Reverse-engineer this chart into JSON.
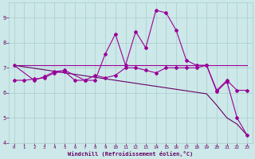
{
  "xlabel": "Windchill (Refroidissement éolien,°C)",
  "background_color": "#cce8e8",
  "grid_color": "#aacccc",
  "line_color": "#990099",
  "xlim": [
    -0.5,
    23.5
  ],
  "ylim": [
    4.0,
    9.6
  ],
  "xticks": [
    0,
    1,
    2,
    3,
    4,
    5,
    6,
    7,
    8,
    9,
    10,
    11,
    12,
    13,
    14,
    15,
    16,
    17,
    18,
    19,
    20,
    21,
    22,
    23
  ],
  "yticks": [
    4,
    5,
    6,
    7,
    8,
    9
  ],
  "line1_x": [
    0,
    1,
    2,
    3,
    4,
    5,
    6,
    7,
    8,
    9,
    10,
    11,
    12,
    13,
    14,
    15,
    16,
    17,
    18,
    19,
    20,
    21,
    22,
    23
  ],
  "line1_y": [
    7.1,
    7.1,
    7.1,
    7.1,
    7.1,
    7.1,
    7.1,
    7.1,
    7.1,
    7.1,
    7.1,
    7.1,
    7.1,
    7.1,
    7.1,
    7.1,
    7.1,
    7.1,
    7.1,
    7.1,
    7.1,
    7.1,
    7.1,
    7.1
  ],
  "line2_x": [
    0,
    1,
    2,
    3,
    4,
    5,
    6,
    7,
    8,
    9,
    10,
    11,
    12,
    13,
    14,
    15,
    16,
    17,
    18,
    19,
    20,
    21,
    22,
    23
  ],
  "line2_y": [
    6.5,
    6.5,
    6.55,
    6.6,
    6.8,
    6.85,
    6.5,
    6.5,
    6.7,
    6.6,
    6.7,
    7.0,
    7.0,
    6.9,
    6.8,
    7.0,
    7.0,
    7.0,
    7.0,
    7.1,
    6.1,
    6.5,
    6.1,
    6.1
  ],
  "line3_x": [
    0,
    2,
    3,
    4,
    5,
    7,
    8,
    9,
    10,
    11,
    12,
    13,
    14,
    15,
    16,
    17,
    18,
    19,
    20,
    21,
    22,
    23
  ],
  "line3_y": [
    7.1,
    6.5,
    6.65,
    6.85,
    6.9,
    6.5,
    6.5,
    7.55,
    8.35,
    7.1,
    8.45,
    7.8,
    9.3,
    9.2,
    8.5,
    7.3,
    7.1,
    7.1,
    6.05,
    6.45,
    5.0,
    4.3
  ],
  "line4_x": [
    0,
    1,
    2,
    3,
    4,
    5,
    6,
    7,
    8,
    9,
    10,
    11,
    12,
    13,
    14,
    15,
    16,
    17,
    18,
    19,
    20,
    21,
    22,
    23
  ],
  "line4_y": [
    7.1,
    7.04,
    6.98,
    6.92,
    6.86,
    6.8,
    6.74,
    6.68,
    6.62,
    6.56,
    6.5,
    6.44,
    6.38,
    6.32,
    6.26,
    6.2,
    6.14,
    6.08,
    6.02,
    5.96,
    5.5,
    5.0,
    4.75,
    4.3
  ]
}
